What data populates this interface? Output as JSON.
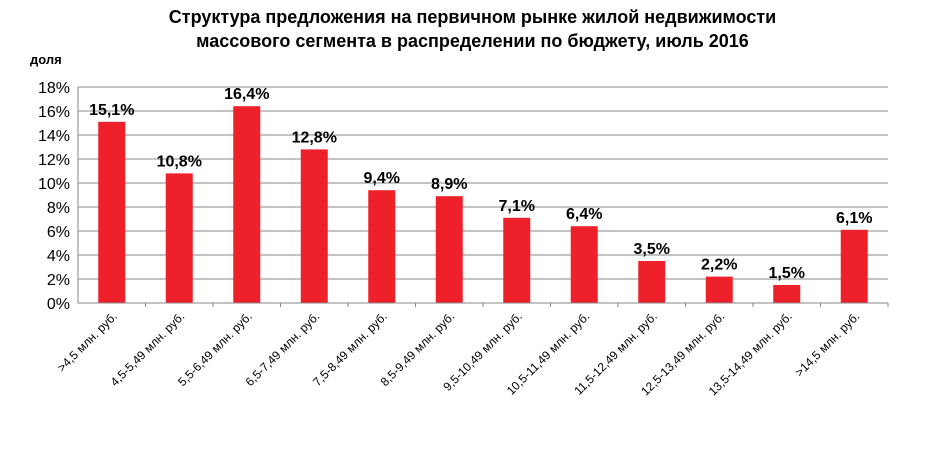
{
  "title_line1": "Структура  предложения на первичном рынке жилой недвижимости",
  "title_line2": "массового сегмента в распределении по бюджету, июль 2016",
  "chart_data": {
    "type": "bar",
    "title": "Структура  предложения на первичном рынке жилой недвижимости массового сегмента в распределении по бюджету, июль 2016",
    "ylabel": "доля",
    "ylim": [
      0,
      18
    ],
    "ytick_step": 2,
    "ytick_labels": [
      "0%",
      "2%",
      "4%",
      "6%",
      "8%",
      "10%",
      "12%",
      "14%",
      "16%",
      "18%"
    ],
    "grid": true,
    "legend": "none",
    "bar_color": "#ee2029",
    "categories": [
      ">4,5 млн. руб.",
      "4,5-5,49 млн. руб.",
      "5,5-6,49 млн. руб.",
      "6,5-7,49 млн. руб.",
      "7,5-8,49 млн. руб.",
      "8,5-9,49 млн. руб.",
      "9,5-10,49 млн. руб.",
      "10,5-11,49 млн. руб.",
      "11,5-12,49 млн. руб.",
      "12,5-13,49 млн. руб.",
      "13,5-14,49 млн. руб.",
      ">14,5 млн. руб."
    ],
    "values": [
      15.1,
      10.8,
      16.4,
      12.8,
      9.4,
      8.9,
      7.1,
      6.4,
      3.5,
      2.2,
      1.5,
      6.1
    ],
    "data_labels": [
      "15,1%",
      "10,8%",
      "16,4%",
      "12,8%",
      "9,4%",
      "8,9%",
      "7,1%",
      "6,4%",
      "3,5%",
      "2,2%",
      "1,5%",
      "6,1%"
    ]
  }
}
